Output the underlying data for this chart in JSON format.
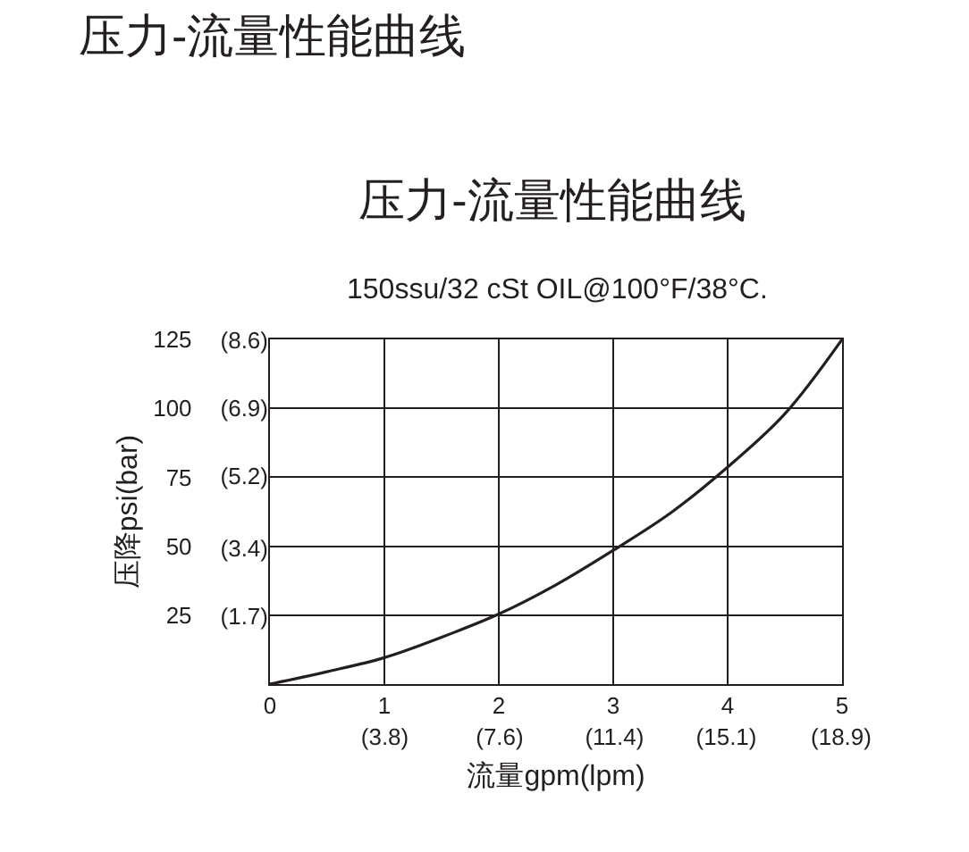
{
  "chart_data": {
    "type": "line",
    "title": "压力-流量性能曲线",
    "subtitle": "150ssu/32 cSt OIL@100°F/38°C.",
    "annotations": [
      "压力-流量性能曲线"
    ],
    "xlabel": "流量gpm(lpm)",
    "ylabel": "压降psi(bar)",
    "x": [
      0,
      0.5,
      1,
      1.5,
      2,
      2.5,
      3,
      3.5,
      4,
      4.5,
      5
    ],
    "series": [
      {
        "color": "#231f20",
        "values": [
          0,
          4.5,
          9.6,
          17,
          25.4,
          36,
          48.5,
          62,
          78.7,
          98,
          125
        ]
      }
    ],
    "xlim": [
      0,
      5
    ],
    "ylim": [
      0,
      125
    ],
    "xticks": [
      0,
      1,
      2,
      3,
      4,
      5
    ],
    "yticks": [
      25,
      50,
      75,
      100,
      125
    ],
    "x2lim": [
      0,
      18.93
    ],
    "x2ticks": [
      {
        "value": 3.8,
        "label": "(3.8)"
      },
      {
        "value": 7.6,
        "label": "(7.6)"
      },
      {
        "value": 11.4,
        "label": "(11.4)"
      },
      {
        "value": 15.1,
        "label": "(15.1)"
      },
      {
        "value": 18.9,
        "label": "(18.9)"
      }
    ],
    "y2lim": [
      0,
      8.62
    ],
    "y2ticks": [
      {
        "value": 1.7,
        "label": "(1.7)"
      },
      {
        "value": 3.4,
        "label": "(3.4)"
      },
      {
        "value": 5.2,
        "label": "(5.2)"
      },
      {
        "value": 6.9,
        "label": "(6.9)"
      },
      {
        "value": 8.6,
        "label": "(8.6)"
      }
    ],
    "grid": true,
    "marker": "none",
    "line_style": "solid",
    "legend": false
  }
}
